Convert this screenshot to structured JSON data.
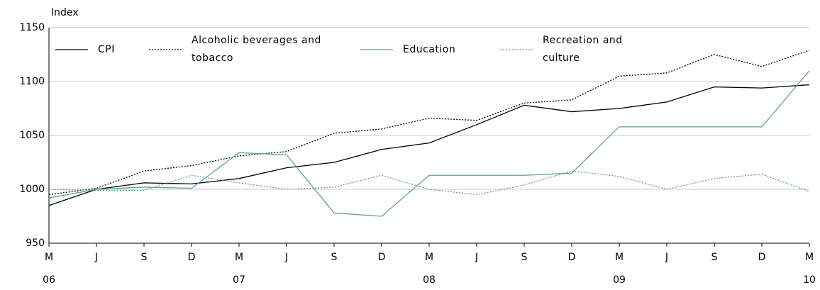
{
  "chart_data": {
    "type": "line",
    "y_label": "Index",
    "categories": [
      "M",
      "J",
      "S",
      "D",
      "M",
      "J",
      "S",
      "D",
      "M",
      "J",
      "S",
      "D",
      "M",
      "J",
      "S",
      "D",
      "M"
    ],
    "x_years": [
      "06",
      null,
      null,
      null,
      "07",
      null,
      null,
      null,
      "08",
      null,
      null,
      null,
      "09",
      null,
      null,
      null,
      "10"
    ],
    "ylim": [
      950,
      1150
    ],
    "yticks": [
      950,
      1000,
      1050,
      1100,
      1150
    ],
    "grid": true,
    "series": [
      {
        "name": "CPI",
        "color": "#000000",
        "dashed": false,
        "values": [
          985,
          1000,
          1006,
          1005,
          1010,
          1020,
          1025,
          1037,
          1043,
          1060,
          1078,
          1072,
          1075,
          1081,
          1095,
          1094,
          1097
        ]
      },
      {
        "name": "Alcoholic beverages and tobacco",
        "color": "#000000",
        "dashed": true,
        "values": [
          995,
          1001,
          1017,
          1022,
          1031,
          1035,
          1052,
          1056,
          1066,
          1064,
          1080,
          1083,
          1105,
          1108,
          1125,
          1114,
          1129
        ]
      },
      {
        "name": "Education",
        "color": "#5f9ea0",
        "dashed": false,
        "values": [
          992,
          1000,
          1002,
          1001,
          1034,
          1032,
          978,
          975,
          1013,
          1013,
          1013,
          1015,
          1058,
          1058,
          1058,
          1058,
          1110
        ]
      },
      {
        "name": "Recreation and culture",
        "color": "#5f9ea0",
        "dashed": true,
        "values": [
          1000,
          999,
          999,
          1013,
          1006,
          1000,
          1002,
          1013,
          1000,
          995,
          1004,
          1017,
          1012,
          1000,
          1010,
          1014,
          998
        ]
      }
    ]
  }
}
